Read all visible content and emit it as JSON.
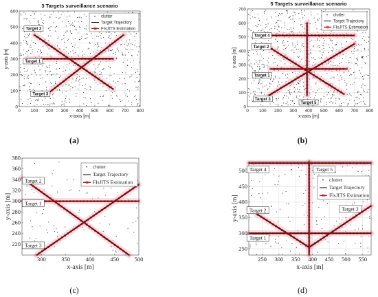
{
  "panels": [
    {
      "caption": "(a)",
      "bold_caption": true
    },
    {
      "caption": "(b)",
      "bold_caption": true
    },
    {
      "caption": "(c)",
      "bold_caption": false
    },
    {
      "caption": "(d)",
      "bold_caption": false
    }
  ],
  "colors": {
    "clutter": "#111111",
    "trajectory": "#000000",
    "estimation": "#b22222",
    "uncertainty": "#f3b8c6",
    "label_box": "#ffffff",
    "grid": "#d9d9d9"
  },
  "chart_data": [
    {
      "type": "scatter",
      "title": "3 Targets surveillance scenario",
      "xlabel": "x-axis [m]",
      "ylabel": "y-axis [m]",
      "xlim": [
        0,
        800
      ],
      "ylim": [
        0,
        600
      ],
      "xticks": [
        0,
        100,
        200,
        300,
        400,
        500,
        600,
        700,
        800
      ],
      "yticks": [
        0,
        100,
        200,
        300,
        400,
        500,
        600
      ],
      "grid": true,
      "legend_position": "top-right",
      "legend": [
        "clutter",
        "Target Trajectory",
        "FIsJITS Estimation"
      ],
      "clutter_count": 700,
      "targets": [
        {
          "label": "Target 1",
          "x": [
            50,
            620
          ],
          "y": [
            300,
            300
          ],
          "label_at": [
            90,
            285
          ]
        },
        {
          "label": "Target 2",
          "x": [
            100,
            620
          ],
          "y": [
            450,
            110
          ],
          "label_at": [
            95,
            490
          ]
        },
        {
          "label": "Target 3",
          "x": [
            200,
            690
          ],
          "y": [
            90,
            450
          ],
          "label_at": [
            140,
            80
          ]
        }
      ]
    },
    {
      "type": "scatter",
      "title": "5 Targets surveillance scenario",
      "xlabel": "x-axis [m]",
      "ylabel": "y-axis [m]",
      "xlim": [
        0,
        800
      ],
      "ylim": [
        0,
        700
      ],
      "xticks": [
        0,
        100,
        200,
        300,
        400,
        500,
        600,
        700,
        800
      ],
      "yticks": [
        0,
        100,
        200,
        300,
        400,
        500,
        600,
        700
      ],
      "grid": true,
      "legend_position": "top-right",
      "legend": [
        "clutter",
        "Target Trajectory",
        "FIsJITS Estimation"
      ],
      "clutter_count": 850,
      "targets": [
        {
          "label": "Target 1",
          "x": [
            150,
            650
          ],
          "y": [
            270,
            270
          ],
          "label_at": [
            95,
            225
          ]
        },
        {
          "label": "Target 2",
          "x": [
            120,
            630
          ],
          "y": [
            440,
            90
          ],
          "label_at": [
            90,
            430
          ]
        },
        {
          "label": "Target 3",
          "x": [
            140,
            700
          ],
          "y": [
            80,
            450
          ],
          "label_at": [
            100,
            55
          ]
        },
        {
          "label": "Target 4",
          "x": [
            140,
            700
          ],
          "y": [
            510,
            510
          ],
          "label_at": [
            95,
            510
          ]
        },
        {
          "label": "Target 5",
          "x": [
            390,
            390
          ],
          "y": [
            80,
            600
          ],
          "label_at": [
            400,
            30
          ]
        }
      ]
    },
    {
      "type": "scatter",
      "title": "",
      "xlabel": "x-axis [m]",
      "ylabel": "y-axis [m]",
      "xlim": [
        260,
        500
      ],
      "ylim": [
        200,
        380
      ],
      "xticks": [
        300,
        350,
        400,
        450,
        500
      ],
      "yticks": [
        220,
        240,
        260,
        280,
        300,
        320,
        340,
        360,
        380
      ],
      "grid": false,
      "legend_position": "top-right",
      "legend": [
        "clutter",
        "Target Trajectory",
        "FIsJITS Estimation"
      ],
      "clutter_count": 90,
      "targets": [
        {
          "label": "Target 1",
          "x": [
            260,
            500
          ],
          "y": [
            300,
            300
          ],
          "label_at": [
            283,
            296
          ]
        },
        {
          "label": "Target 2",
          "x": [
            260,
            480
          ],
          "y": [
            343,
            200
          ],
          "label_at": [
            283,
            338
          ]
        },
        {
          "label": "Target 3",
          "x": [
            290,
            500
          ],
          "y": [
            200,
            331
          ],
          "label_at": [
            283,
            218
          ]
        }
      ]
    },
    {
      "type": "scatter",
      "title": "",
      "xlabel": "x-axis [m]",
      "ylabel": "y-axis [m]",
      "xlim": [
        210,
        575
      ],
      "ylim": [
        230,
        530
      ],
      "xticks": [
        250,
        300,
        350,
        400,
        450,
        500,
        550
      ],
      "yticks": [
        250,
        300,
        350,
        400,
        450,
        500
      ],
      "grid": true,
      "legend_position": "top-right",
      "legend": [
        "clutter",
        "Target Trajectory",
        "FIsJITS Estimation"
      ],
      "clutter_count": 180,
      "targets": [
        {
          "label": "Target 1",
          "x": [
            210,
            575
          ],
          "y": [
            300,
            300
          ],
          "label_at": [
            237,
            285
          ]
        },
        {
          "label": "Target 2",
          "x": [
            210,
            390
          ],
          "y": [
            378,
            255
          ],
          "label_at": [
            237,
            374
          ]
        },
        {
          "label": "Target 3",
          "x": [
            390,
            575
          ],
          "y": [
            255,
            388
          ],
          "label_at": [
            512,
            378
          ]
        },
        {
          "label": "Target 4",
          "x": [
            210,
            575
          ],
          "y": [
            525,
            525
          ],
          "label_at": [
            237,
            505
          ]
        },
        {
          "label": "Target 5",
          "x": [
            390,
            390
          ],
          "y": [
            230,
            530
          ],
          "label_at": [
            435,
            505
          ]
        }
      ]
    }
  ]
}
